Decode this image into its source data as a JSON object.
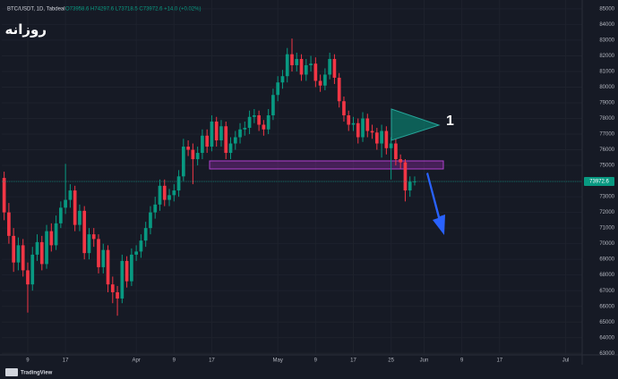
{
  "chart_data": {
    "type": "candlestick",
    "header": {
      "symbol": "BTC/USDT, 1D, Tabdeal",
      "ohlc": "O73958.6 H74297.6 L73718.5 C73972.6 +14.0 (+0.02%)"
    },
    "annotations": {
      "label": "روزانه",
      "marker": "1"
    },
    "brand": "TradingView",
    "up_color": "#089981",
    "down_color": "#f23645",
    "grid": true,
    "xlim": [
      -0.5,
      122.5
    ],
    "xticks": [
      {
        "value": 5,
        "label": "9"
      },
      {
        "value": 13,
        "label": "17"
      },
      {
        "value": 28,
        "label": "Apr"
      },
      {
        "value": 36,
        "label": "9"
      },
      {
        "value": 44,
        "label": "17"
      },
      {
        "value": 58,
        "label": "May"
      },
      {
        "value": 66,
        "label": "9"
      },
      {
        "value": 74,
        "label": "17"
      },
      {
        "value": 82,
        "label": "25"
      },
      {
        "value": 89,
        "label": "Jun"
      },
      {
        "value": 97,
        "label": "9"
      },
      {
        "value": 105,
        "label": "17"
      },
      {
        "value": 119,
        "label": "Jul"
      }
    ],
    "ylim": [
      62900,
      85565
    ],
    "yticks": [
      85000,
      84000,
      83000,
      82000,
      81000,
      80000,
      79000,
      78000,
      77000,
      76000,
      75000,
      74000,
      73000,
      72000,
      71000,
      70000,
      69000,
      68000,
      67000,
      66000,
      65000,
      64000,
      63000
    ],
    "open": [
      74200,
      72000,
      70500,
      68800,
      69900,
      68300,
      67400,
      69300,
      70100,
      68700,
      70800,
      69900,
      71300,
      72300,
      72800,
      73400,
      71200,
      72100,
      69400,
      70600,
      70300,
      68500,
      69600,
      67400,
      66900,
      66500,
      68900,
      67600,
      69300,
      69500,
      70200,
      71000,
      72000,
      72500,
      73700,
      72800,
      73100,
      73400,
      74300,
      76200,
      76000,
      75400,
      75800,
      76900,
      76200,
      77800,
      76600,
      77500,
      75800,
      76400,
      76800,
      77300,
      77400,
      78100,
      78200,
      77600,
      77300,
      78200,
      79500,
      80300,
      80700,
      82100,
      81400,
      81800,
      80800,
      81400,
      81500,
      80400,
      80100,
      80800,
      81800,
      80600,
      79100,
      78200,
      77600,
      77700,
      76800,
      78000,
      77200,
      77100,
      76400,
      77200,
      76100,
      76400,
      75400,
      75200,
      73400,
      73958.6
    ],
    "high": [
      74600,
      72600,
      71000,
      70400,
      70300,
      68800,
      69800,
      70600,
      70500,
      71200,
      71300,
      71800,
      72700,
      75100,
      73800,
      73700,
      72500,
      72400,
      71000,
      71000,
      70600,
      70000,
      69900,
      67900,
      67300,
      69300,
      69200,
      69700,
      69900,
      70600,
      71400,
      72400,
      73000,
      74100,
      74100,
      73500,
      73800,
      74700,
      76700,
      76600,
      76400,
      76200,
      77300,
      77300,
      78200,
      78100,
      77900,
      77800,
      76800,
      77200,
      77700,
      77800,
      78500,
      78600,
      78500,
      77900,
      78600,
      79900,
      80700,
      81100,
      82500,
      83100,
      82200,
      82100,
      81800,
      82000,
      81900,
      80800,
      81200,
      82200,
      82100,
      80900,
      79400,
      78500,
      78100,
      78000,
      78400,
      78300,
      77600,
      77400,
      77600,
      77500,
      76800,
      76700,
      75700,
      75400,
      74300,
      74297.6
    ],
    "low": [
      71500,
      70000,
      68200,
      68300,
      67900,
      65600,
      67000,
      68900,
      68300,
      68400,
      69500,
      69600,
      71000,
      71900,
      72300,
      70800,
      70800,
      69000,
      69000,
      69800,
      68100,
      68100,
      66900,
      66200,
      65400,
      66200,
      67200,
      67300,
      68900,
      69100,
      69800,
      70600,
      71600,
      72100,
      72400,
      72400,
      72700,
      73000,
      74000,
      75600,
      73800,
      75000,
      75400,
      75800,
      75900,
      76200,
      76200,
      75400,
      75400,
      76000,
      76400,
      76900,
      77000,
      77700,
      77200,
      76900,
      77000,
      77900,
      79100,
      79900,
      80300,
      81000,
      81000,
      80400,
      80400,
      81000,
      80000,
      79700,
      79800,
      80500,
      80200,
      78700,
      77800,
      77200,
      77200,
      76400,
      76500,
      76800,
      76700,
      76000,
      75500,
      75700,
      74100,
      75000,
      74800,
      72700,
      73000,
      73718.5
    ],
    "close": [
      72000,
      70500,
      68800,
      69900,
      68300,
      67400,
      69300,
      70100,
      68700,
      70800,
      69900,
      71300,
      72300,
      72800,
      73400,
      71200,
      72100,
      69400,
      70600,
      70300,
      68500,
      69600,
      67400,
      66900,
      66500,
      68900,
      67600,
      69300,
      69500,
      70200,
      71000,
      72000,
      72500,
      73700,
      72800,
      73100,
      73400,
      74300,
      76200,
      76000,
      75400,
      75800,
      76900,
      76200,
      77800,
      76600,
      77500,
      75800,
      76400,
      76800,
      77300,
      77400,
      78100,
      78200,
      77600,
      77300,
      78200,
      79500,
      80300,
      80700,
      82100,
      81400,
      81800,
      80800,
      81400,
      81500,
      80400,
      80100,
      80800,
      81800,
      80600,
      79100,
      78200,
      77600,
      77700,
      76800,
      78000,
      77200,
      77100,
      76400,
      77200,
      76100,
      76400,
      75400,
      75200,
      73400,
      73958.6,
      73972.6
    ]
  }
}
